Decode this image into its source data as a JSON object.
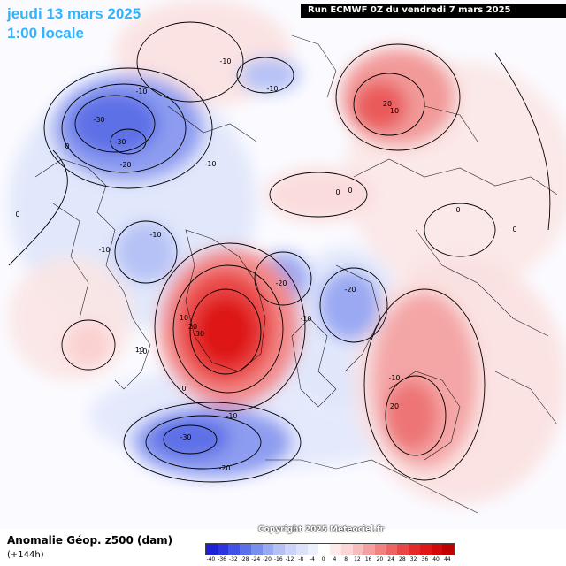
{
  "header": {
    "date": "jeudi 13 mars 2025",
    "time": "1:00 locale",
    "run": "Run ECMWF 0Z du vendredi 7 mars 2025"
  },
  "footer": {
    "title": "Anomalie Géop. z500 (dam)",
    "subtitle": "(+144h)",
    "copyright": "Copyright 2025 Meteociel.fr"
  },
  "legend": {
    "labels": [
      "-40",
      "-36",
      "-32",
      "-28",
      "-24",
      "-20",
      "-16",
      "-12",
      "-8",
      "-4",
      "0",
      "4",
      "8",
      "12",
      "16",
      "20",
      "24",
      "28",
      "32",
      "36",
      "40",
      "44"
    ],
    "colors": [
      "#1f1fd8",
      "#2e33e0",
      "#4252e6",
      "#5a70ea",
      "#7a8eee",
      "#98a8f2",
      "#b4c0f6",
      "#cbd4f8",
      "#dde2fa",
      "#eceffc",
      "#ffffff",
      "#fdeaea",
      "#fbd6d6",
      "#f8bcbc",
      "#f5a0a0",
      "#f28282",
      "#ee6464",
      "#ea4646",
      "#e42a2a",
      "#de1616",
      "#d40808",
      "#c00000"
    ]
  },
  "contour_labels": [
    "-10",
    "-10",
    "-30",
    "-30",
    "-20",
    "-10",
    "0",
    "-10",
    "-10",
    "10",
    "20",
    "30",
    "-20",
    "-20",
    "-10",
    "10",
    "20",
    "-10",
    "0",
    "0",
    "0",
    "0",
    "0",
    "20",
    "-10",
    "-30",
    "-20",
    "10",
    "-10",
    "0",
    "-10"
  ],
  "icons": {
    "map": "north-hemisphere-polar-map"
  }
}
